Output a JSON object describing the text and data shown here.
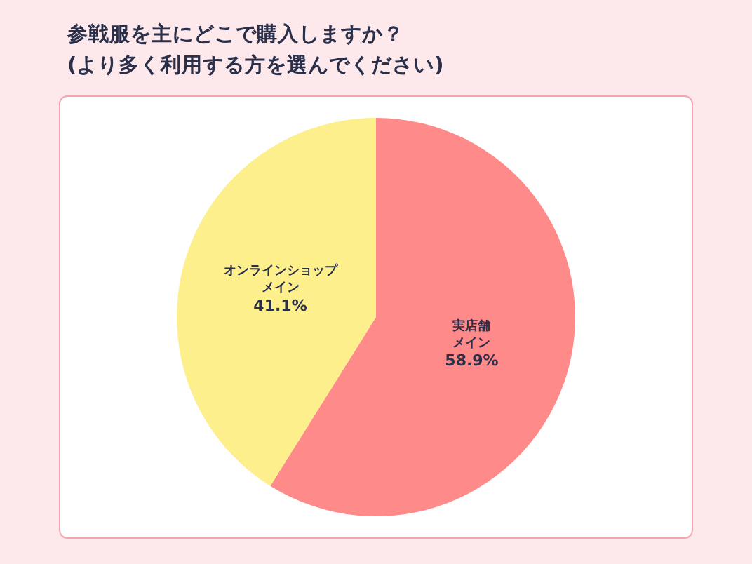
{
  "chart_data": {
    "type": "pie",
    "title": "参戦服を主にどこで購入しますか？\n(より多く利用する方を選んでください)",
    "categories": [
      "実店舗メイン",
      "オンラインショップメイン"
    ],
    "values": [
      58.9,
      41.1
    ],
    "colors": [
      "#ff8a8a",
      "#fdef8c"
    ],
    "value_labels": [
      "58.9%",
      "41.1%"
    ],
    "legend": false
  }
}
